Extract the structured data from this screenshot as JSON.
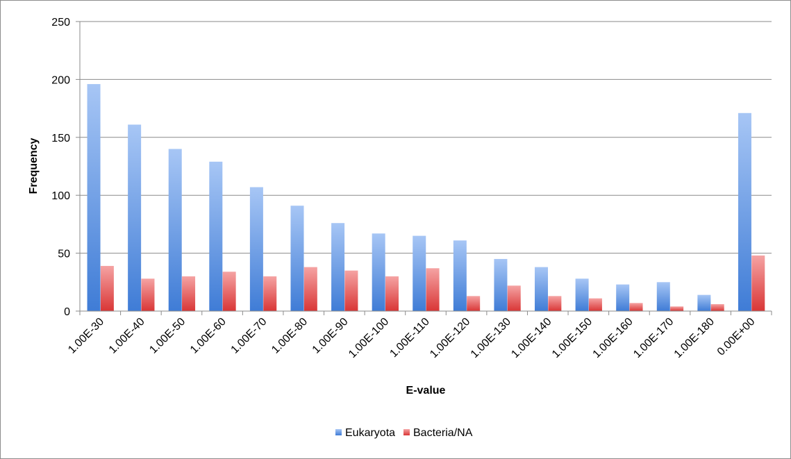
{
  "chart_data": {
    "type": "bar",
    "title": "",
    "xlabel": "E-value",
    "ylabel": "Frequency",
    "ylim": [
      0,
      250
    ],
    "yticks": [
      0,
      50,
      100,
      150,
      200,
      250
    ],
    "grid": true,
    "legend_position": "bottom",
    "categories": [
      "1.00E-30",
      "1.00E-40",
      "1.00E-50",
      "1.00E-60",
      "1.00E-70",
      "1.00E-80",
      "1.00E-90",
      "1.00E-100",
      "1.00E-110",
      "1.00E-120",
      "1.00E-130",
      "1.00E-140",
      "1.00E-150",
      "1.00E-160",
      "1.00E-170",
      "1.00E-180",
      "0.00E+00"
    ],
    "series": [
      {
        "name": "Eukaryota",
        "color": "#4f81bd",
        "values": [
          196,
          161,
          140,
          129,
          107,
          91,
          76,
          67,
          65,
          61,
          45,
          38,
          28,
          23,
          25,
          14,
          171
        ]
      },
      {
        "name": "Bacteria/NA",
        "color": "#c0504d",
        "values": [
          39,
          28,
          30,
          34,
          30,
          38,
          35,
          30,
          37,
          13,
          22,
          13,
          11,
          7,
          4,
          6,
          48
        ]
      }
    ]
  }
}
